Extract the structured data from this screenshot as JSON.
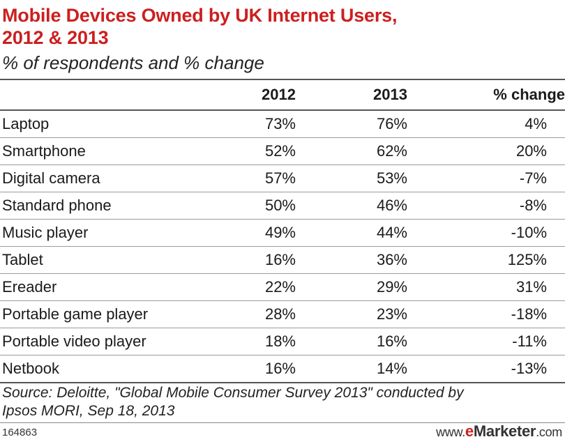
{
  "chart_data": {
    "type": "table",
    "title_line1": "Mobile Devices Owned by UK Internet Users,",
    "title_line2": "2012 & 2013",
    "subtitle": "% of respondents and % change",
    "columns": [
      "",
      "2012",
      "2013",
      "% change"
    ],
    "rows": [
      {
        "device": "Laptop",
        "y2012": "73%",
        "y2013": "76%",
        "change": "4%"
      },
      {
        "device": "Smartphone",
        "y2012": "52%",
        "y2013": "62%",
        "change": "20%"
      },
      {
        "device": "Digital camera",
        "y2012": "57%",
        "y2013": "53%",
        "change": "-7%"
      },
      {
        "device": "Standard phone",
        "y2012": "50%",
        "y2013": "46%",
        "change": "-8%"
      },
      {
        "device": "Music player",
        "y2012": "49%",
        "y2013": "44%",
        "change": "-10%"
      },
      {
        "device": "Tablet",
        "y2012": "16%",
        "y2013": "36%",
        "change": "125%"
      },
      {
        "device": "Ereader",
        "y2012": "22%",
        "y2013": "29%",
        "change": "31%"
      },
      {
        "device": "Portable game player",
        "y2012": "28%",
        "y2013": "23%",
        "change": "-18%"
      },
      {
        "device": "Portable video player",
        "y2012": "18%",
        "y2013": "16%",
        "change": "-11%"
      },
      {
        "device": "Netbook",
        "y2012": "16%",
        "y2013": "14%",
        "change": "-13%"
      }
    ],
    "source_line1": "Source: Deloitte, \"Global Mobile Consumer Survey 2013\" conducted by",
    "source_line2": "Ipsos MORI, Sep 18, 2013",
    "chart_id": "164863",
    "brand_prefix": "www.",
    "brand_e": "e",
    "brand_rest": "Marketer",
    "brand_suffix": ".com"
  },
  "colors": {
    "title": "#cc1f1f",
    "text": "#1a1a1a",
    "rule": "#555555"
  }
}
